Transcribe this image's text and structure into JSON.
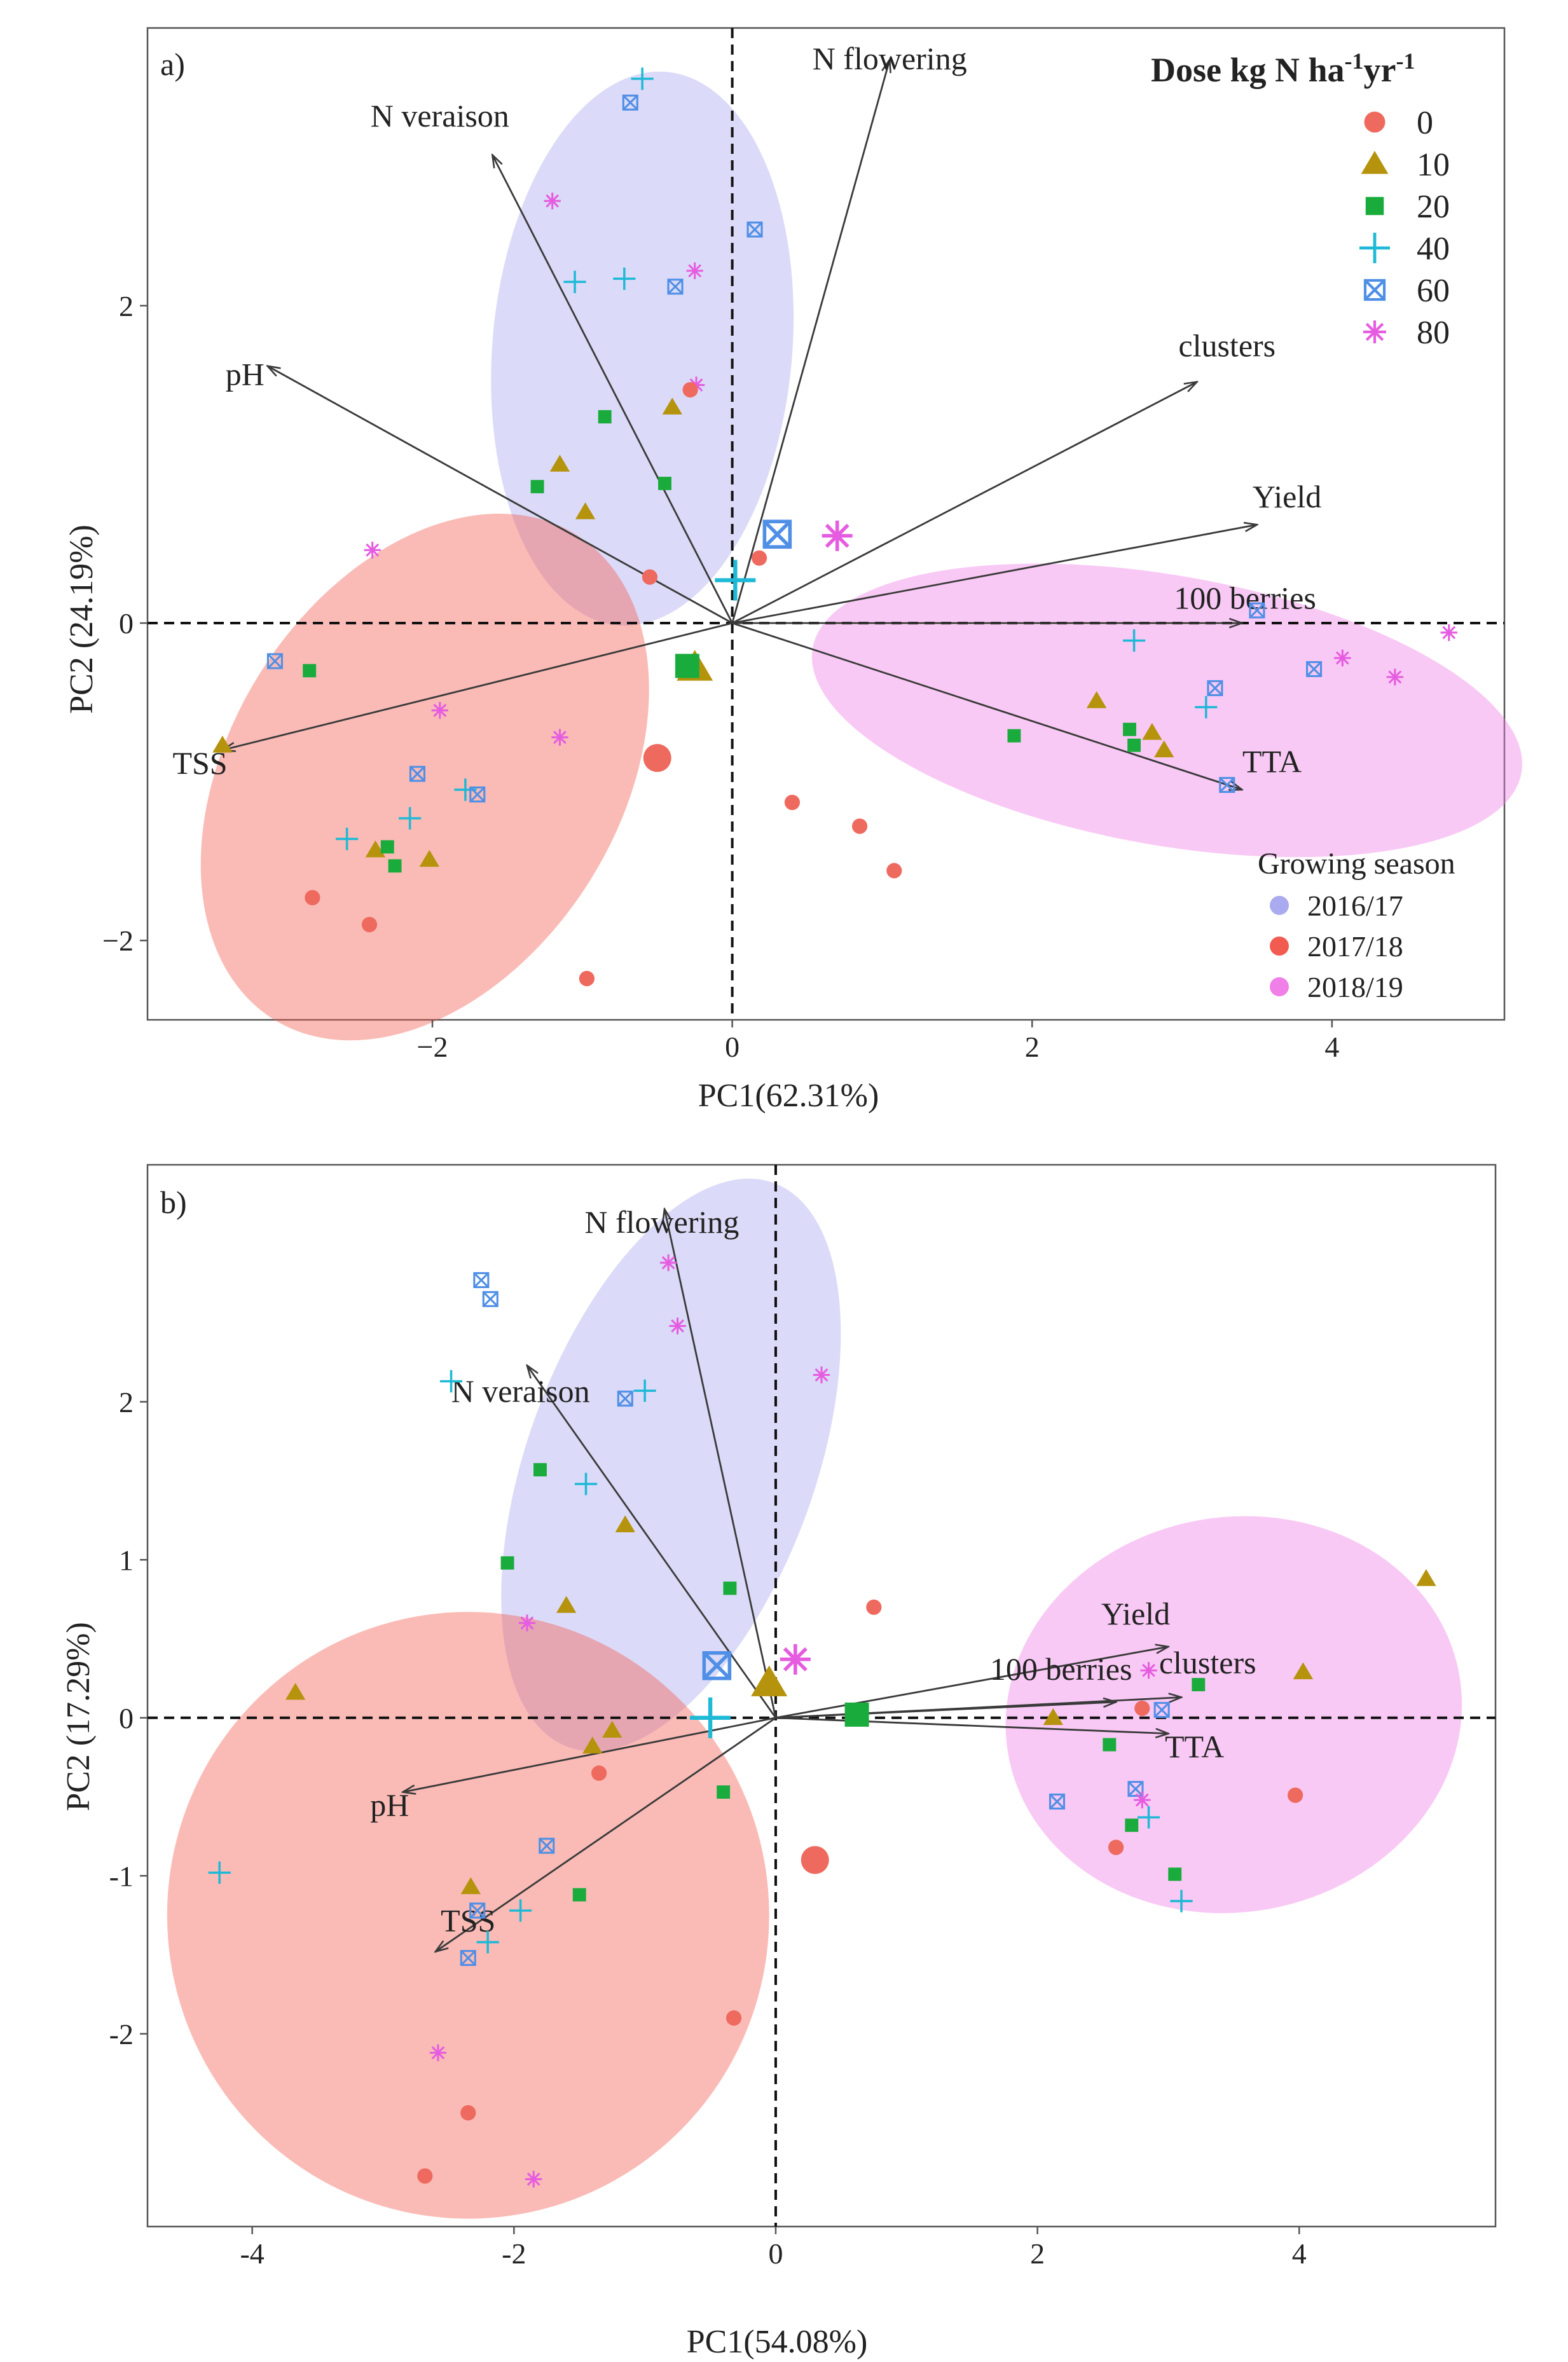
{
  "chart_data": [
    {
      "type": "scatter",
      "panel_label": "a)",
      "xlabel": "PC1(62.31%)",
      "ylabel": "PC2 (24.19%)",
      "xlim": [
        -3.9,
        5.15
      ],
      "ylim": [
        -2.5,
        3.75
      ],
      "xticks": [
        -2,
        0,
        2,
        4
      ],
      "yticks": [
        -2,
        0,
        2
      ],
      "tick_labels_x": [
        "−2",
        "0",
        "2",
        "4"
      ],
      "tick_labels_y": [
        "−2",
        "0",
        "2"
      ],
      "legend_title_main": "Dose kg N ha",
      "legend_sup1": "-1",
      "legend_mid": "yr",
      "legend_sup2": "-1",
      "doses": [
        "0",
        "10",
        "20",
        "40",
        "60",
        "80"
      ],
      "season_title": "Growing season",
      "seasons": [
        "2016/17",
        "2017/18",
        "2018/19"
      ],
      "season_colors": [
        "#aaaaf0",
        "#f25c50",
        "#f07fe8"
      ],
      "ellipses": [
        {
          "season": "2016/17",
          "cx": -0.6,
          "cy": 1.73,
          "rx": 1.0,
          "ry": 1.75,
          "angle": 5
        },
        {
          "season": "2017/18",
          "cx": -2.05,
          "cy": -0.97,
          "rx": 1.3,
          "ry": 1.8,
          "angle": 32
        },
        {
          "season": "2018/19",
          "cx": 2.9,
          "cy": -0.55,
          "rx": 2.4,
          "ry": 0.85,
          "angle": 10
        }
      ],
      "vectors": [
        {
          "label": "N flowering",
          "x": 1.05,
          "y": 3.55,
          "lx": 1.05,
          "ly": 3.49
        },
        {
          "label": "N veraison",
          "x": -1.6,
          "y": 2.95,
          "lx": -1.95,
          "ly": 3.13
        },
        {
          "label": "pH",
          "x": -3.1,
          "y": 1.62,
          "lx": -3.25,
          "ly": 1.5
        },
        {
          "label": "clusters",
          "x": 3.1,
          "y": 1.52,
          "lx": 3.3,
          "ly": 1.68
        },
        {
          "label": "Yield",
          "x": 3.5,
          "y": 0.62,
          "lx": 3.7,
          "ly": 0.73
        },
        {
          "label": "100 berries",
          "x": 3.4,
          "y": 0.0,
          "lx": 3.42,
          "ly": 0.09
        },
        {
          "label": "TTA",
          "x": 3.4,
          "y": -1.05,
          "lx": 3.6,
          "ly": -0.94
        },
        {
          "label": "TSS",
          "x": -3.4,
          "y": -0.8,
          "lx": -3.55,
          "ly": -0.95
        }
      ],
      "centroids": [
        {
          "dose": "0",
          "x": -0.5,
          "y": -0.85
        },
        {
          "dose": "10",
          "x": -0.25,
          "y": -0.28
        },
        {
          "dose": "20",
          "x": -0.3,
          "y": -0.27
        },
        {
          "dose": "40",
          "x": 0.02,
          "y": 0.27
        },
        {
          "dose": "60",
          "x": 0.3,
          "y": 0.56
        },
        {
          "dose": "80",
          "x": 0.7,
          "y": 0.55
        }
      ],
      "points": [
        {
          "dose": "40",
          "x": -0.6,
          "y": 3.43,
          "season": "2016/17"
        },
        {
          "dose": "60",
          "x": -0.68,
          "y": 3.28,
          "season": "2016/17"
        },
        {
          "dose": "60",
          "x": 0.15,
          "y": 2.48,
          "season": "2016/17"
        },
        {
          "dose": "80",
          "x": -1.2,
          "y": 2.66,
          "season": "2016/17"
        },
        {
          "dose": "80",
          "x": -0.25,
          "y": 2.22,
          "season": "2016/17"
        },
        {
          "dose": "40",
          "x": -1.05,
          "y": 2.15,
          "season": "2016/17"
        },
        {
          "dose": "40",
          "x": -0.72,
          "y": 2.17,
          "season": "2016/17"
        },
        {
          "dose": "60",
          "x": -0.38,
          "y": 2.12,
          "season": "2016/17"
        },
        {
          "dose": "80",
          "x": -0.24,
          "y": 1.5,
          "season": "2016/17"
        },
        {
          "dose": "0",
          "x": -0.28,
          "y": 1.47,
          "season": "2016/17"
        },
        {
          "dose": "10",
          "x": -0.4,
          "y": 1.36,
          "season": "2016/17"
        },
        {
          "dose": "20",
          "x": -0.85,
          "y": 1.3,
          "season": "2016/17"
        },
        {
          "dose": "10",
          "x": -1.15,
          "y": 1.0,
          "season": "2016/17"
        },
        {
          "dose": "20",
          "x": -1.3,
          "y": 0.86,
          "season": "2016/17"
        },
        {
          "dose": "20",
          "x": -0.45,
          "y": 0.88,
          "season": "2016/17"
        },
        {
          "dose": "10",
          "x": -0.98,
          "y": 0.7,
          "season": "2016/17"
        },
        {
          "dose": "0",
          "x": -0.55,
          "y": 0.29,
          "season": "2016/17"
        },
        {
          "dose": "0",
          "x": 0.18,
          "y": 0.41,
          "season": "2016/17"
        },
        {
          "dose": "80",
          "x": -2.4,
          "y": 0.46,
          "season": "2017/18"
        },
        {
          "dose": "60",
          "x": -3.05,
          "y": -0.24,
          "season": "2017/18"
        },
        {
          "dose": "20",
          "x": -2.82,
          "y": -0.3,
          "season": "2017/18"
        },
        {
          "dose": "10",
          "x": -3.4,
          "y": -0.77,
          "season": "2017/18"
        },
        {
          "dose": "80",
          "x": -1.95,
          "y": -0.55,
          "season": "2017/18"
        },
        {
          "dose": "80",
          "x": -1.15,
          "y": -0.72,
          "season": "2017/18"
        },
        {
          "dose": "60",
          "x": -2.1,
          "y": -0.95,
          "season": "2017/18"
        },
        {
          "dose": "40",
          "x": -1.78,
          "y": -1.05,
          "season": "2017/18"
        },
        {
          "dose": "60",
          "x": -1.7,
          "y": -1.08,
          "season": "2017/18"
        },
        {
          "dose": "40",
          "x": -2.15,
          "y": -1.23,
          "season": "2017/18"
        },
        {
          "dose": "40",
          "x": -2.57,
          "y": -1.36,
          "season": "2017/18"
        },
        {
          "dose": "10",
          "x": -2.38,
          "y": -1.43,
          "season": "2017/18"
        },
        {
          "dose": "20",
          "x": -2.3,
          "y": -1.41,
          "season": "2017/18"
        },
        {
          "dose": "20",
          "x": -2.25,
          "y": -1.53,
          "season": "2017/18"
        },
        {
          "dose": "10",
          "x": -2.02,
          "y": -1.49,
          "season": "2017/18"
        },
        {
          "dose": "0",
          "x": -2.8,
          "y": -1.73,
          "season": "2017/18"
        },
        {
          "dose": "0",
          "x": -2.42,
          "y": -1.9,
          "season": "2017/18"
        },
        {
          "dose": "0",
          "x": -0.97,
          "y": -2.24,
          "season": "2017/18"
        },
        {
          "dose": "80",
          "x": 4.78,
          "y": -0.06,
          "season": "2018/19"
        },
        {
          "dose": "60",
          "x": 3.5,
          "y": 0.08,
          "season": "2018/19"
        },
        {
          "dose": "40",
          "x": 2.68,
          "y": -0.11,
          "season": "2018/19"
        },
        {
          "dose": "60",
          "x": 3.88,
          "y": -0.29,
          "season": "2018/19"
        },
        {
          "dose": "80",
          "x": 4.07,
          "y": -0.22,
          "season": "2018/19"
        },
        {
          "dose": "80",
          "x": 4.42,
          "y": -0.34,
          "season": "2018/19"
        },
        {
          "dose": "60",
          "x": 3.22,
          "y": -0.41,
          "season": "2018/19"
        },
        {
          "dose": "40",
          "x": 3.16,
          "y": -0.53,
          "season": "2018/19"
        },
        {
          "dose": "10",
          "x": 2.43,
          "y": -0.49,
          "season": "2018/19"
        },
        {
          "dose": "20",
          "x": 2.65,
          "y": -0.67,
          "season": "2018/19"
        },
        {
          "dose": "10",
          "x": 2.8,
          "y": -0.69,
          "season": "2018/19"
        },
        {
          "dose": "20",
          "x": 2.68,
          "y": -0.77,
          "season": "2018/19"
        },
        {
          "dose": "10",
          "x": 2.88,
          "y": -0.8,
          "season": "2018/19"
        },
        {
          "dose": "20",
          "x": 1.88,
          "y": -0.71,
          "season": "2018/19"
        },
        {
          "dose": "60",
          "x": 3.3,
          "y": -1.02,
          "season": "2018/19"
        },
        {
          "dose": "0",
          "x": 0.4,
          "y": -1.13,
          "season": "2018/19"
        },
        {
          "dose": "0",
          "x": 0.85,
          "y": -1.28,
          "season": "2018/19"
        },
        {
          "dose": "0",
          "x": 1.08,
          "y": -1.56,
          "season": "2018/19"
        }
      ]
    },
    {
      "type": "scatter",
      "panel_label": "b)",
      "xlabel": "PC1(54.08%)",
      "ylabel": "PC2 (17.29%)",
      "xlim": [
        -4.8,
        5.5
      ],
      "ylim": [
        -3.22,
        3.5
      ],
      "xticks": [
        -4,
        -2,
        0,
        2,
        4
      ],
      "yticks": [
        -2,
        -1,
        0,
        1,
        2
      ],
      "tick_labels_x": [
        "-4",
        "-2",
        "0",
        "2",
        "4"
      ],
      "tick_labels_y": [
        "-2",
        "-1",
        "0",
        "1",
        "2"
      ],
      "ellipses": [
        {
          "season": "2016/17",
          "cx": -0.8,
          "cy": 1.6,
          "rx": 1.1,
          "ry": 1.9,
          "angle": 20
        },
        {
          "season": "2017/18",
          "cx": -2.35,
          "cy": -1.25,
          "rx": 2.3,
          "ry": 1.92,
          "angle": 0
        },
        {
          "season": "2018/19",
          "cx": 3.5,
          "cy": 0.02,
          "rx": 1.75,
          "ry": 1.25,
          "angle": -10
        }
      ],
      "vectors": [
        {
          "label": "N flowering",
          "x": -0.85,
          "y": 3.22,
          "lx": -0.87,
          "ly": 3.07
        },
        {
          "label": "N veraison",
          "x": -1.9,
          "y": 2.23,
          "lx": -1.95,
          "ly": 2.0
        },
        {
          "label": "pH",
          "x": -2.85,
          "y": -0.47,
          "lx": -2.95,
          "ly": -0.62
        },
        {
          "label": "TSS",
          "x": -2.6,
          "y": -1.48,
          "lx": -2.35,
          "ly": -1.35
        },
        {
          "label": "Yield",
          "x": 3.0,
          "y": 0.45,
          "lx": 2.75,
          "ly": 0.59
        },
        {
          "label": "100 berries",
          "x": 2.6,
          "y": 0.1,
          "lx": 2.18,
          "ly": 0.24
        },
        {
          "label": "clusters",
          "x": 3.1,
          "y": 0.13,
          "lx": 3.3,
          "ly": 0.28
        },
        {
          "label": "TTA",
          "x": 3.0,
          "y": -0.1,
          "lx": 3.2,
          "ly": -0.25
        }
      ],
      "centroids": [
        {
          "dose": "0",
          "x": 0.3,
          "y": -0.9
        },
        {
          "dose": "10",
          "x": -0.05,
          "y": 0.22
        },
        {
          "dose": "20",
          "x": 0.62,
          "y": 0.02
        },
        {
          "dose": "40",
          "x": -0.5,
          "y": 0.0
        },
        {
          "dose": "60",
          "x": -0.45,
          "y": 0.33
        },
        {
          "dose": "80",
          "x": 0.15,
          "y": 0.37
        }
      ],
      "points": [
        {
          "dose": "80",
          "x": -0.82,
          "y": 2.88,
          "season": "2016/17"
        },
        {
          "dose": "60",
          "x": -2.25,
          "y": 2.77,
          "season": "2016/17"
        },
        {
          "dose": "60",
          "x": -2.18,
          "y": 2.65,
          "season": "2016/17"
        },
        {
          "dose": "80",
          "x": -0.75,
          "y": 2.48,
          "season": "2016/17"
        },
        {
          "dose": "80",
          "x": 0.35,
          "y": 2.17,
          "season": "2016/17"
        },
        {
          "dose": "40",
          "x": -2.48,
          "y": 2.13,
          "season": "2016/17"
        },
        {
          "dose": "40",
          "x": -1.0,
          "y": 2.07,
          "season": "2016/17"
        },
        {
          "dose": "60",
          "x": -1.15,
          "y": 2.02,
          "season": "2016/17"
        },
        {
          "dose": "20",
          "x": -1.8,
          "y": 1.57,
          "season": "2016/17"
        },
        {
          "dose": "40",
          "x": -1.45,
          "y": 1.48,
          "season": "2016/17"
        },
        {
          "dose": "10",
          "x": -1.15,
          "y": 1.22,
          "season": "2016/17"
        },
        {
          "dose": "20",
          "x": -2.05,
          "y": 0.98,
          "season": "2016/17"
        },
        {
          "dose": "20",
          "x": -0.35,
          "y": 0.82,
          "season": "2016/17"
        },
        {
          "dose": "10",
          "x": -1.6,
          "y": 0.71,
          "season": "2016/17"
        },
        {
          "dose": "0",
          "x": 0.75,
          "y": 0.7,
          "season": "2016/17"
        },
        {
          "dose": "80",
          "x": -1.9,
          "y": 0.6,
          "season": "2016/17"
        },
        {
          "dose": "10",
          "x": -3.67,
          "y": 0.16,
          "season": "2017/18"
        },
        {
          "dose": "10",
          "x": -1.25,
          "y": -0.08,
          "season": "2017/18"
        },
        {
          "dose": "10",
          "x": -1.4,
          "y": -0.18,
          "season": "2017/18"
        },
        {
          "dose": "0",
          "x": -1.35,
          "y": -0.35,
          "season": "2017/18"
        },
        {
          "dose": "20",
          "x": -0.4,
          "y": -0.47,
          "season": "2017/18"
        },
        {
          "dose": "60",
          "x": -1.75,
          "y": -0.81,
          "season": "2017/18"
        },
        {
          "dose": "40",
          "x": -4.25,
          "y": -0.98,
          "season": "2017/18"
        },
        {
          "dose": "20",
          "x": -1.5,
          "y": -1.12,
          "season": "2017/18"
        },
        {
          "dose": "10",
          "x": -2.33,
          "y": -1.07,
          "season": "2017/18"
        },
        {
          "dose": "60",
          "x": -2.28,
          "y": -1.22,
          "season": "2017/18"
        },
        {
          "dose": "40",
          "x": -1.95,
          "y": -1.22,
          "season": "2017/18"
        },
        {
          "dose": "40",
          "x": -2.2,
          "y": -1.42,
          "season": "2017/18"
        },
        {
          "dose": "60",
          "x": -2.35,
          "y": -1.52,
          "season": "2017/18"
        },
        {
          "dose": "0",
          "x": -0.32,
          "y": -1.9,
          "season": "2017/18"
        },
        {
          "dose": "80",
          "x": -2.58,
          "y": -2.12,
          "season": "2017/18"
        },
        {
          "dose": "0",
          "x": -2.35,
          "y": -2.5,
          "season": "2017/18"
        },
        {
          "dose": "0",
          "x": -2.68,
          "y": -2.9,
          "season": "2017/18"
        },
        {
          "dose": "80",
          "x": -1.85,
          "y": -2.92,
          "season": "2017/18"
        },
        {
          "dose": "10",
          "x": 4.97,
          "y": 0.88,
          "season": "2018/19"
        },
        {
          "dose": "10",
          "x": 4.03,
          "y": 0.29,
          "season": "2018/19"
        },
        {
          "dose": "80",
          "x": 2.85,
          "y": 0.3,
          "season": "2018/19"
        },
        {
          "dose": "20",
          "x": 3.23,
          "y": 0.21,
          "season": "2018/19"
        },
        {
          "dose": "0",
          "x": 2.8,
          "y": 0.06,
          "season": "2018/19"
        },
        {
          "dose": "60",
          "x": 2.95,
          "y": 0.05,
          "season": "2018/19"
        },
        {
          "dose": "10",
          "x": 2.12,
          "y": 0.0,
          "season": "2018/19"
        },
        {
          "dose": "20",
          "x": 2.55,
          "y": -0.17,
          "season": "2018/19"
        },
        {
          "dose": "60",
          "x": 2.75,
          "y": -0.45,
          "season": "2018/19"
        },
        {
          "dose": "80",
          "x": 2.8,
          "y": -0.52,
          "season": "2018/19"
        },
        {
          "dose": "0",
          "x": 3.97,
          "y": -0.49,
          "season": "2018/19"
        },
        {
          "dose": "60",
          "x": 2.15,
          "y": -0.53,
          "season": "2018/19"
        },
        {
          "dose": "40",
          "x": 2.85,
          "y": -0.63,
          "season": "2018/19"
        },
        {
          "dose": "20",
          "x": 2.72,
          "y": -0.68,
          "season": "2018/19"
        },
        {
          "dose": "0",
          "x": 2.6,
          "y": -0.82,
          "season": "2018/19"
        },
        {
          "dose": "20",
          "x": 3.05,
          "y": -0.99,
          "season": "2018/19"
        },
        {
          "dose": "40",
          "x": 3.1,
          "y": -1.16,
          "season": "2018/19"
        }
      ]
    }
  ]
}
